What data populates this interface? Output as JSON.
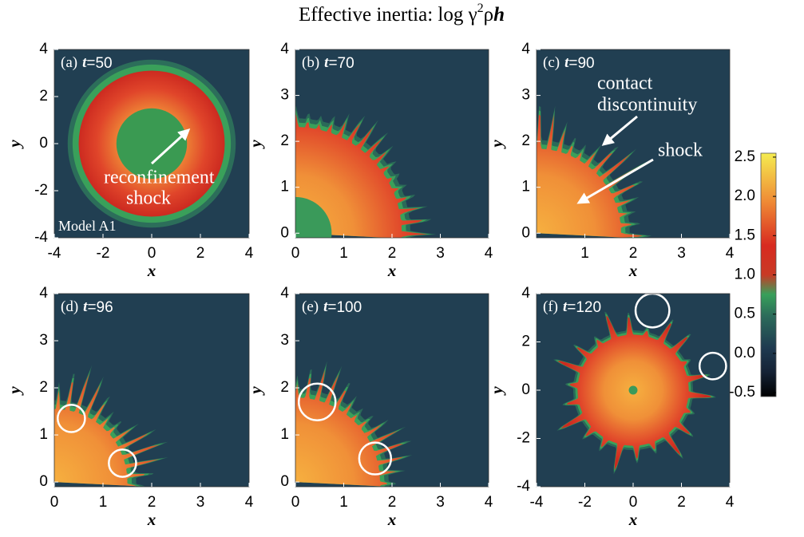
{
  "title": {
    "text": "Effective inertia:  log γ",
    "sup": "2",
    "rho": "ρ",
    "var": "h"
  },
  "panels": [
    {
      "tag": "(a)",
      "var": "t",
      "eq": "=50",
      "xlim": [
        -4,
        4
      ],
      "ylim": [
        -4,
        4
      ],
      "xticks": [
        -4,
        -2,
        0,
        2,
        4
      ],
      "yticks": [
        -4,
        -2,
        0,
        2,
        4
      ],
      "xlabel": "x",
      "ylabel": "y",
      "annotations": [
        "reconfinement",
        "shock",
        "Model A1"
      ]
    },
    {
      "tag": "(b)",
      "var": "t",
      "eq": "=70",
      "xlim": [
        0,
        4
      ],
      "ylim": [
        -0.1,
        4
      ],
      "xticks": [
        0,
        1,
        2,
        3,
        4
      ],
      "yticks": [
        0,
        1,
        2,
        3,
        4
      ],
      "xlabel": "x",
      "ylabel": "y",
      "annotations": []
    },
    {
      "tag": "(c)",
      "var": "t",
      "eq": "=90",
      "xlim": [
        0,
        4
      ],
      "ylim": [
        -0.1,
        4
      ],
      "xticks": [
        1,
        2,
        3,
        4
      ],
      "yticks": [
        0,
        1,
        2,
        3,
        4
      ],
      "xlabel": "x",
      "ylabel": "y",
      "annotations": [
        "contact",
        "discontinuity",
        "shock"
      ]
    },
    {
      "tag": "(d)",
      "var": "t",
      "eq": "=96",
      "xlim": [
        0,
        4
      ],
      "ylim": [
        -0.1,
        4
      ],
      "xticks": [
        0,
        1,
        2,
        3,
        4
      ],
      "yticks": [
        0,
        1,
        2,
        3,
        4
      ],
      "xlabel": "x",
      "ylabel": "y",
      "annotations": []
    },
    {
      "tag": "(e)",
      "var": "t",
      "eq": "=100",
      "xlim": [
        0,
        4
      ],
      "ylim": [
        -0.1,
        4
      ],
      "xticks": [
        0,
        1,
        2,
        3,
        4
      ],
      "yticks": [
        0,
        1,
        2,
        3,
        4
      ],
      "xlabel": "x",
      "ylabel": "y",
      "annotations": []
    },
    {
      "tag": "(f)",
      "var": "t",
      "eq": "=120",
      "xlim": [
        -4,
        4
      ],
      "ylim": [
        -4,
        4
      ],
      "xticks": [
        -4,
        -2,
        0,
        2,
        4
      ],
      "yticks": [
        -4,
        -2,
        0,
        2,
        4
      ],
      "xlabel": "x",
      "ylabel": "y",
      "annotations": []
    }
  ],
  "colorbar": {
    "lim": [
      -0.55,
      2.55
    ],
    "ticks": [
      2.5,
      {
        "value": 2,
        "label": "2.0"
      },
      1.5,
      {
        "value": 1,
        "label": "1.0"
      },
      0.5,
      {
        "value": 0,
        "label": "0.0"
      },
      -0.5
    ]
  }
}
